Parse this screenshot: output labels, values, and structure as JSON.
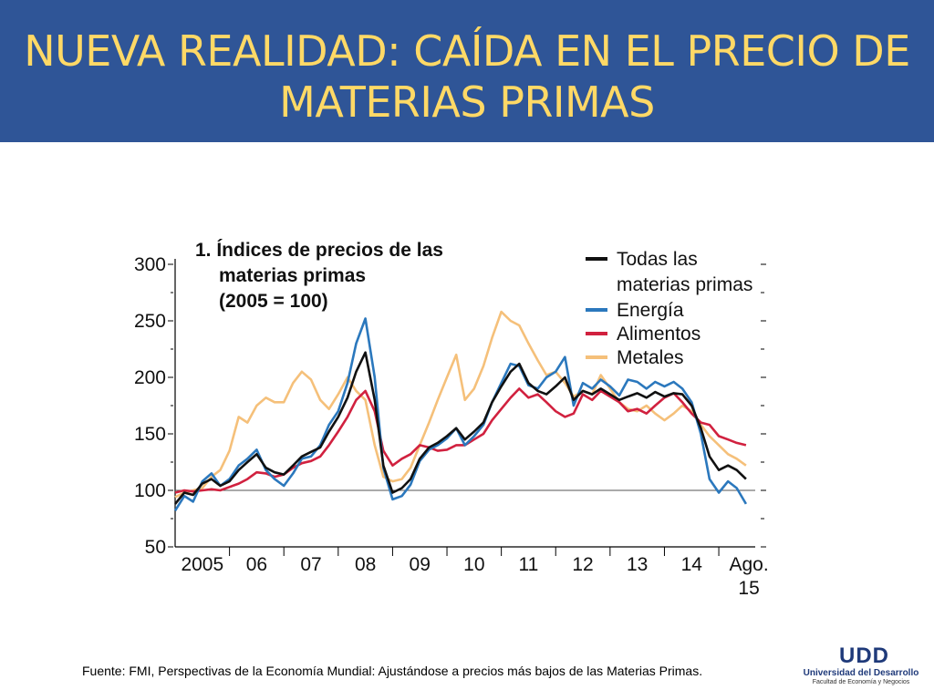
{
  "slide": {
    "title_line1": "NUEVA REALIDAD: CAÍDA EN EL PRECIO DE",
    "title_line2": "MATERIAS PRIMAS",
    "source": "Fuente: FMI, Perspectivas de la Economía Mundial: Ajustándose a precios más bajos de las Materias Primas.",
    "header_color": "#2f5597",
    "title_color": "#ffd966"
  },
  "logo": {
    "mark": "UDD",
    "name": "Universidad del Desarrollo",
    "subtitle": "Facultad de Economía y Negocios"
  },
  "chart_data": {
    "type": "line",
    "title": [
      "1.  Índices de precios de las",
      "materias primas",
      "(2005 = 100)"
    ],
    "ylim": [
      50,
      300
    ],
    "yticks": [
      50,
      100,
      150,
      200,
      250,
      300
    ],
    "xlim": [
      2005,
      2015.67
    ],
    "xticks": [
      {
        "label": "2005",
        "x": 2005.5
      },
      {
        "label": "06",
        "x": 2006.5
      },
      {
        "label": "07",
        "x": 2007.5
      },
      {
        "label": "08",
        "x": 2008.5
      },
      {
        "label": "09",
        "x": 2009.5
      },
      {
        "label": "10",
        "x": 2010.5
      },
      {
        "label": "11",
        "x": 2011.5
      },
      {
        "label": "12",
        "x": 2012.5
      },
      {
        "label": "13",
        "x": 2013.5
      },
      {
        "label": "14",
        "x": 2014.5
      },
      {
        "label": [
          "Ago.",
          "15"
        ],
        "x": 2015.42
      }
    ],
    "reference_line": 100,
    "legend": "top-right",
    "series": [
      {
        "name": [
          "Todas las",
          "materias primas"
        ],
        "color": "#111111",
        "points": [
          [
            2005.0,
            88
          ],
          [
            2005.17,
            98
          ],
          [
            2005.33,
            96
          ],
          [
            2005.5,
            106
          ],
          [
            2005.67,
            110
          ],
          [
            2005.83,
            104
          ],
          [
            2006.0,
            108
          ],
          [
            2006.17,
            118
          ],
          [
            2006.33,
            125
          ],
          [
            2006.5,
            132
          ],
          [
            2006.67,
            120
          ],
          [
            2006.83,
            116
          ],
          [
            2007.0,
            114
          ],
          [
            2007.17,
            122
          ],
          [
            2007.33,
            130
          ],
          [
            2007.5,
            134
          ],
          [
            2007.67,
            138
          ],
          [
            2007.83,
            152
          ],
          [
            2008.0,
            165
          ],
          [
            2008.17,
            182
          ],
          [
            2008.33,
            205
          ],
          [
            2008.5,
            222
          ],
          [
            2008.67,
            180
          ],
          [
            2008.83,
            122
          ],
          [
            2009.0,
            98
          ],
          [
            2009.17,
            102
          ],
          [
            2009.33,
            110
          ],
          [
            2009.5,
            128
          ],
          [
            2009.67,
            138
          ],
          [
            2009.83,
            142
          ],
          [
            2010.0,
            148
          ],
          [
            2010.17,
            155
          ],
          [
            2010.33,
            145
          ],
          [
            2010.5,
            152
          ],
          [
            2010.67,
            160
          ],
          [
            2010.83,
            178
          ],
          [
            2011.0,
            192
          ],
          [
            2011.17,
            205
          ],
          [
            2011.33,
            212
          ],
          [
            2011.5,
            195
          ],
          [
            2011.67,
            188
          ],
          [
            2011.83,
            185
          ],
          [
            2012.0,
            192
          ],
          [
            2012.17,
            200
          ],
          [
            2012.33,
            180
          ],
          [
            2012.5,
            188
          ],
          [
            2012.67,
            185
          ],
          [
            2012.83,
            190
          ],
          [
            2013.0,
            185
          ],
          [
            2013.17,
            180
          ],
          [
            2013.33,
            183
          ],
          [
            2013.5,
            186
          ],
          [
            2013.67,
            182
          ],
          [
            2013.83,
            187
          ],
          [
            2014.0,
            183
          ],
          [
            2014.17,
            186
          ],
          [
            2014.33,
            185
          ],
          [
            2014.5,
            175
          ],
          [
            2014.67,
            155
          ],
          [
            2014.83,
            130
          ],
          [
            2015.0,
            118
          ],
          [
            2015.17,
            122
          ],
          [
            2015.33,
            118
          ],
          [
            2015.5,
            110
          ]
        ]
      },
      {
        "name": "Energía",
        "color": "#2b78bd",
        "points": [
          [
            2005.0,
            82
          ],
          [
            2005.17,
            95
          ],
          [
            2005.33,
            90
          ],
          [
            2005.5,
            108
          ],
          [
            2005.67,
            115
          ],
          [
            2005.83,
            104
          ],
          [
            2006.0,
            110
          ],
          [
            2006.17,
            122
          ],
          [
            2006.33,
            128
          ],
          [
            2006.5,
            136
          ],
          [
            2006.67,
            118
          ],
          [
            2006.83,
            110
          ],
          [
            2007.0,
            104
          ],
          [
            2007.17,
            115
          ],
          [
            2007.33,
            128
          ],
          [
            2007.5,
            130
          ],
          [
            2007.67,
            140
          ],
          [
            2007.83,
            158
          ],
          [
            2008.0,
            170
          ],
          [
            2008.17,
            195
          ],
          [
            2008.33,
            230
          ],
          [
            2008.5,
            252
          ],
          [
            2008.67,
            200
          ],
          [
            2008.83,
            120
          ],
          [
            2009.0,
            92
          ],
          [
            2009.17,
            95
          ],
          [
            2009.33,
            105
          ],
          [
            2009.5,
            126
          ],
          [
            2009.67,
            136
          ],
          [
            2009.83,
            140
          ],
          [
            2010.0,
            146
          ],
          [
            2010.17,
            155
          ],
          [
            2010.33,
            140
          ],
          [
            2010.5,
            148
          ],
          [
            2010.67,
            158
          ],
          [
            2010.83,
            178
          ],
          [
            2011.0,
            195
          ],
          [
            2011.17,
            212
          ],
          [
            2011.33,
            210
          ],
          [
            2011.5,
            193
          ],
          [
            2011.67,
            190
          ],
          [
            2011.83,
            200
          ],
          [
            2012.0,
            205
          ],
          [
            2012.17,
            218
          ],
          [
            2012.33,
            175
          ],
          [
            2012.5,
            195
          ],
          [
            2012.67,
            190
          ],
          [
            2012.83,
            198
          ],
          [
            2013.0,
            192
          ],
          [
            2013.17,
            184
          ],
          [
            2013.33,
            198
          ],
          [
            2013.5,
            196
          ],
          [
            2013.67,
            190
          ],
          [
            2013.83,
            196
          ],
          [
            2014.0,
            192
          ],
          [
            2014.17,
            196
          ],
          [
            2014.33,
            190
          ],
          [
            2014.5,
            178
          ],
          [
            2014.67,
            150
          ],
          [
            2014.83,
            110
          ],
          [
            2015.0,
            98
          ],
          [
            2015.17,
            108
          ],
          [
            2015.33,
            102
          ],
          [
            2015.5,
            88
          ]
        ]
      },
      {
        "name": "Alimentos",
        "color": "#d1213f",
        "points": [
          [
            2005.0,
            98
          ],
          [
            2005.17,
            100
          ],
          [
            2005.33,
            99
          ],
          [
            2005.5,
            100
          ],
          [
            2005.67,
            101
          ],
          [
            2005.83,
            100
          ],
          [
            2006.0,
            103
          ],
          [
            2006.17,
            106
          ],
          [
            2006.33,
            110
          ],
          [
            2006.5,
            116
          ],
          [
            2006.67,
            115
          ],
          [
            2006.83,
            112
          ],
          [
            2007.0,
            114
          ],
          [
            2007.17,
            120
          ],
          [
            2007.33,
            124
          ],
          [
            2007.5,
            126
          ],
          [
            2007.67,
            130
          ],
          [
            2007.83,
            140
          ],
          [
            2008.0,
            152
          ],
          [
            2008.17,
            165
          ],
          [
            2008.33,
            180
          ],
          [
            2008.5,
            188
          ],
          [
            2008.67,
            170
          ],
          [
            2008.83,
            135
          ],
          [
            2009.0,
            122
          ],
          [
            2009.17,
            128
          ],
          [
            2009.33,
            132
          ],
          [
            2009.5,
            140
          ],
          [
            2009.67,
            138
          ],
          [
            2009.83,
            135
          ],
          [
            2010.0,
            136
          ],
          [
            2010.17,
            140
          ],
          [
            2010.33,
            140
          ],
          [
            2010.5,
            145
          ],
          [
            2010.67,
            150
          ],
          [
            2010.83,
            162
          ],
          [
            2011.0,
            172
          ],
          [
            2011.17,
            182
          ],
          [
            2011.33,
            190
          ],
          [
            2011.5,
            182
          ],
          [
            2011.67,
            185
          ],
          [
            2011.83,
            178
          ],
          [
            2012.0,
            170
          ],
          [
            2012.17,
            165
          ],
          [
            2012.33,
            168
          ],
          [
            2012.5,
            185
          ],
          [
            2012.67,
            180
          ],
          [
            2012.83,
            188
          ],
          [
            2013.0,
            183
          ],
          [
            2013.17,
            178
          ],
          [
            2013.33,
            170
          ],
          [
            2013.5,
            172
          ],
          [
            2013.67,
            168
          ],
          [
            2013.83,
            175
          ],
          [
            2014.0,
            182
          ],
          [
            2014.17,
            186
          ],
          [
            2014.33,
            178
          ],
          [
            2014.5,
            168
          ],
          [
            2014.67,
            160
          ],
          [
            2014.83,
            158
          ],
          [
            2015.0,
            148
          ],
          [
            2015.17,
            145
          ],
          [
            2015.33,
            142
          ],
          [
            2015.5,
            140
          ]
        ]
      },
      {
        "name": "Metales",
        "color": "#f5c07a",
        "points": [
          [
            2005.0,
            94
          ],
          [
            2005.17,
            98
          ],
          [
            2005.33,
            100
          ],
          [
            2005.5,
            102
          ],
          [
            2005.67,
            112
          ],
          [
            2005.83,
            118
          ],
          [
            2006.0,
            135
          ],
          [
            2006.17,
            165
          ],
          [
            2006.33,
            160
          ],
          [
            2006.5,
            175
          ],
          [
            2006.67,
            182
          ],
          [
            2006.83,
            178
          ],
          [
            2007.0,
            178
          ],
          [
            2007.17,
            195
          ],
          [
            2007.33,
            205
          ],
          [
            2007.5,
            198
          ],
          [
            2007.67,
            180
          ],
          [
            2007.83,
            172
          ],
          [
            2008.0,
            185
          ],
          [
            2008.17,
            200
          ],
          [
            2008.33,
            188
          ],
          [
            2008.5,
            180
          ],
          [
            2008.67,
            140
          ],
          [
            2008.83,
            112
          ],
          [
            2009.0,
            108
          ],
          [
            2009.17,
            110
          ],
          [
            2009.33,
            120
          ],
          [
            2009.5,
            140
          ],
          [
            2009.67,
            160
          ],
          [
            2009.83,
            180
          ],
          [
            2010.0,
            200
          ],
          [
            2010.17,
            220
          ],
          [
            2010.33,
            180
          ],
          [
            2010.5,
            190
          ],
          [
            2010.67,
            210
          ],
          [
            2010.83,
            235
          ],
          [
            2011.0,
            258
          ],
          [
            2011.17,
            250
          ],
          [
            2011.33,
            246
          ],
          [
            2011.5,
            230
          ],
          [
            2011.67,
            215
          ],
          [
            2011.83,
            202
          ],
          [
            2012.0,
            205
          ],
          [
            2012.17,
            195
          ],
          [
            2012.33,
            183
          ],
          [
            2012.5,
            188
          ],
          [
            2012.67,
            185
          ],
          [
            2012.83,
            202
          ],
          [
            2013.0,
            190
          ],
          [
            2013.17,
            178
          ],
          [
            2013.33,
            172
          ],
          [
            2013.5,
            170
          ],
          [
            2013.67,
            175
          ],
          [
            2013.83,
            168
          ],
          [
            2014.0,
            162
          ],
          [
            2014.17,
            168
          ],
          [
            2014.33,
            175
          ],
          [
            2014.5,
            170
          ],
          [
            2014.67,
            158
          ],
          [
            2014.83,
            148
          ],
          [
            2015.0,
            140
          ],
          [
            2015.17,
            132
          ],
          [
            2015.33,
            128
          ],
          [
            2015.5,
            122
          ]
        ]
      }
    ]
  }
}
